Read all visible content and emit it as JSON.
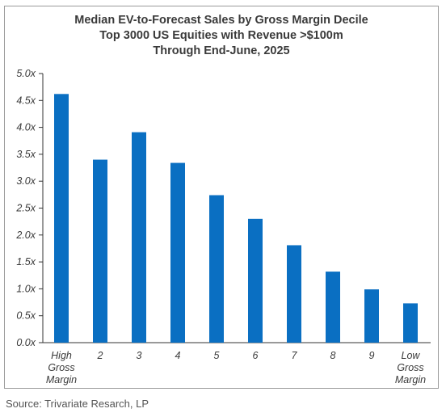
{
  "title_lines": [
    "Median EV-to-Forecast Sales by Gross Margin Decile",
    "Top 3000 US Equities with Revenue >$100m",
    "Through End-June, 2025"
  ],
  "source": "Source: Trivariate Resarch, LP",
  "colors": {
    "bar": "#0a6fc2",
    "axis": "#333333",
    "text": "#3a3a3a"
  },
  "chart_data": {
    "type": "bar",
    "title": "Median EV-to-Forecast Sales by Gross Margin Decile",
    "subtitle": "Top 3000 US Equities with Revenue >$100m; Through End-June, 2025",
    "categories": [
      "High Gross Margin",
      "2",
      "3",
      "4",
      "5",
      "6",
      "7",
      "8",
      "9",
      "Low Gross Margin"
    ],
    "category_label_lines": [
      [
        "High",
        "Gross",
        "Margin"
      ],
      [
        "2"
      ],
      [
        "3"
      ],
      [
        "4"
      ],
      [
        "5"
      ],
      [
        "6"
      ],
      [
        "7"
      ],
      [
        "8"
      ],
      [
        "9"
      ],
      [
        "Low",
        "Gross",
        "Margin"
      ]
    ],
    "values": [
      4.62,
      3.4,
      3.91,
      3.34,
      2.74,
      2.3,
      1.81,
      1.32,
      0.99,
      0.73
    ],
    "ylim": [
      0,
      5
    ],
    "yticks": [
      0,
      0.5,
      1,
      1.5,
      2,
      2.5,
      3,
      3.5,
      4,
      4.5,
      5
    ],
    "ytick_labels": [
      "0.0x",
      "0.5x",
      "1.0x",
      "1.5x",
      "2.0x",
      "2.5x",
      "3.0x",
      "3.5x",
      "4.0x",
      "4.5x",
      "5.0x"
    ],
    "xlabel": "",
    "ylabel": "",
    "grid": false,
    "legend": "none"
  }
}
